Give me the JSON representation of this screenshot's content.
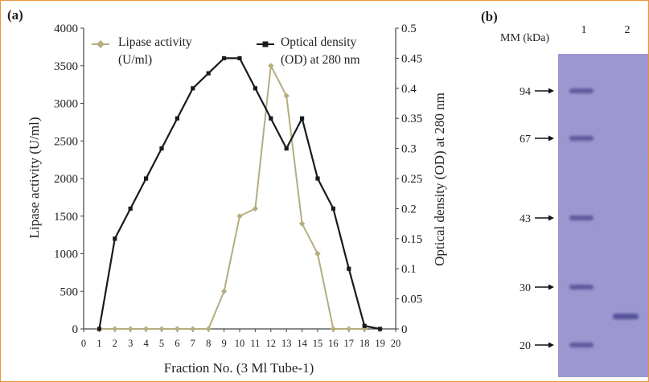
{
  "chart_data": [
    {
      "type": "line",
      "panel_label": "(a)",
      "x": [
        1,
        2,
        3,
        4,
        5,
        6,
        7,
        8,
        9,
        10,
        11,
        12,
        13,
        14,
        15,
        16,
        17,
        18,
        19
      ],
      "xlim": [
        0,
        20
      ],
      "xticks": [
        "0",
        "1",
        "2",
        "3",
        "4",
        "5",
        "6",
        "7",
        "8",
        "9",
        "10",
        "11",
        "12",
        "13",
        "14",
        "15",
        "16",
        "17",
        "18",
        "19",
        "20"
      ],
      "xlabel": "Fraction No. (3 Ml Tube-1)",
      "ylabel": "Lipase activity (U/ml)",
      "ylim": [
        0,
        4000
      ],
      "yticks": [
        "0",
        "500",
        "1000",
        "1500",
        "2000",
        "2500",
        "3000",
        "3500",
        "4000"
      ],
      "y2label": "Optical density (OD) at 280 nm",
      "y2lim": [
        0,
        0.5
      ],
      "y2ticks": [
        "0",
        "0.05",
        "0.1",
        "0.15",
        "0.2",
        "0.25",
        "0.3",
        "0.35",
        "0.4",
        "0.45",
        "0.5"
      ],
      "series": [
        {
          "name": "Lipase activity (U/ml)",
          "legend_lines": [
            "Lipase activity",
            "(U/ml)"
          ],
          "axis": "left",
          "color": "#b5ad7e",
          "marker": "diamond",
          "points": [
            [
              1,
              0
            ],
            [
              2,
              0
            ],
            [
              3,
              0
            ],
            [
              4,
              0
            ],
            [
              5,
              0
            ],
            [
              6,
              0
            ],
            [
              7,
              0
            ],
            [
              8,
              0
            ],
            [
              9,
              500
            ],
            [
              10,
              1500
            ],
            [
              11,
              1600
            ],
            [
              12,
              3500
            ],
            [
              13,
              3100
            ],
            [
              14,
              1400
            ],
            [
              15,
              1000
            ],
            [
              16,
              0
            ],
            [
              17,
              0
            ],
            [
              18,
              0
            ]
          ]
        },
        {
          "name": "Optical density (OD) at 280 nm",
          "legend_lines": [
            "Optical density",
            "(OD) at 280 nm"
          ],
          "axis": "right",
          "color": "#1a1a1a",
          "marker": "square",
          "points": [
            [
              1,
              0
            ],
            [
              2,
              0.15
            ],
            [
              3,
              0.2
            ],
            [
              4,
              0.25
            ],
            [
              5,
              0.3
            ],
            [
              6,
              0.35
            ],
            [
              7,
              0.4
            ],
            [
              8,
              0.425
            ],
            [
              9,
              0.45
            ],
            [
              10,
              0.45
            ],
            [
              11,
              0.4
            ],
            [
              12,
              0.35
            ],
            [
              13,
              0.3
            ],
            [
              14,
              0.35
            ],
            [
              15,
              0.25
            ],
            [
              16,
              0.2
            ],
            [
              17,
              0.1
            ],
            [
              18,
              0.005
            ],
            [
              19,
              0
            ]
          ]
        }
      ]
    },
    {
      "type": "other",
      "panel_label": "(b)",
      "marker_heading": "MM (kDa)",
      "lane_labels": [
        "1",
        "2"
      ],
      "markers_kda": [
        "94",
        "67",
        "43",
        "30",
        "20"
      ],
      "gel_color": "#9a94cf"
    }
  ]
}
